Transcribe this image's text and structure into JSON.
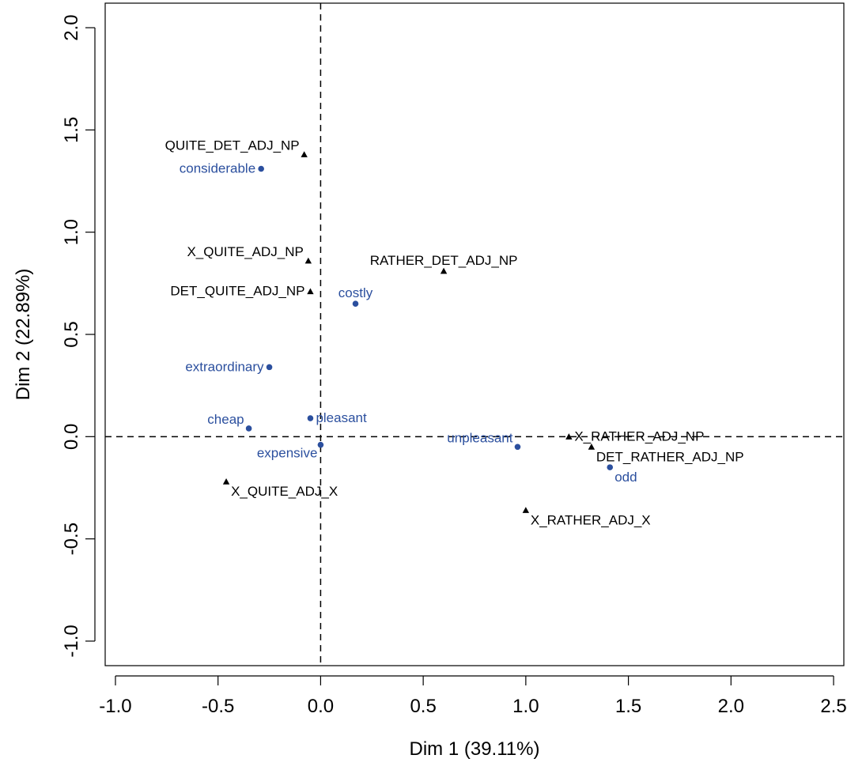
{
  "chart_data": {
    "type": "scatter",
    "xlabel": "Dim 1 (39.11%)",
    "ylabel": "Dim 2 (22.89%)",
    "xlim": [
      -1.05,
      2.55
    ],
    "ylim": [
      -1.12,
      2.12
    ],
    "x_ticks": [
      "-1.0",
      "-0.5",
      "0.0",
      "0.5",
      "1.0",
      "1.5",
      "2.0",
      "2.5"
    ],
    "y_ticks": [
      "-1.0",
      "-0.5",
      "0.0",
      "0.5",
      "1.0",
      "1.5",
      "2.0"
    ],
    "reference_lines": {
      "x": 0,
      "y": 0,
      "style": "dashed"
    },
    "colors": {
      "rows": "#2b4f9e",
      "columns": "#000000"
    },
    "series": [
      {
        "marker": "circle",
        "color": "#2b4f9e",
        "points": [
          {
            "label": "considerable",
            "x": -0.29,
            "y": 1.31,
            "label_pos": "left"
          },
          {
            "label": "costly",
            "x": 0.17,
            "y": 0.65,
            "label_pos": "above"
          },
          {
            "label": "extraordinary",
            "x": -0.25,
            "y": 0.34,
            "label_pos": "left"
          },
          {
            "label": "pleasant",
            "x": -0.05,
            "y": 0.09,
            "label_pos": "right"
          },
          {
            "label": "cheap",
            "x": -0.35,
            "y": 0.04,
            "label_pos": "upper-left"
          },
          {
            "label": "expensive",
            "x": 0.0,
            "y": -0.04,
            "label_pos": "lower-left"
          },
          {
            "label": "unpleasant",
            "x": 0.96,
            "y": -0.05,
            "label_pos": "upper-left"
          },
          {
            "label": "odd",
            "x": 1.41,
            "y": -0.15,
            "label_pos": "below-right"
          }
        ]
      },
      {
        "marker": "triangle",
        "color": "#000000",
        "points": [
          {
            "label": "QUITE_DET_ADJ_NP",
            "x": -0.08,
            "y": 1.38,
            "label_pos": "upper-left"
          },
          {
            "label": "X_QUITE_ADJ_NP",
            "x": -0.06,
            "y": 0.86,
            "label_pos": "upper-left"
          },
          {
            "label": "RATHER_DET_ADJ_NP",
            "x": 0.6,
            "y": 0.81,
            "label_pos": "above"
          },
          {
            "label": "DET_QUITE_ADJ_NP",
            "x": -0.05,
            "y": 0.71,
            "label_pos": "left"
          },
          {
            "label": "X_RATHER_ADJ_NP",
            "x": 1.21,
            "y": 0.0,
            "label_pos": "right"
          },
          {
            "label": "DET_RATHER_ADJ_NP",
            "x": 1.32,
            "y": -0.05,
            "label_pos": "below-right"
          },
          {
            "label": "X_QUITE_ADJ_X",
            "x": -0.46,
            "y": -0.22,
            "label_pos": "below-right"
          },
          {
            "label": "X_RATHER_ADJ_X",
            "x": 1.0,
            "y": -0.36,
            "label_pos": "below-right"
          }
        ]
      }
    ]
  }
}
